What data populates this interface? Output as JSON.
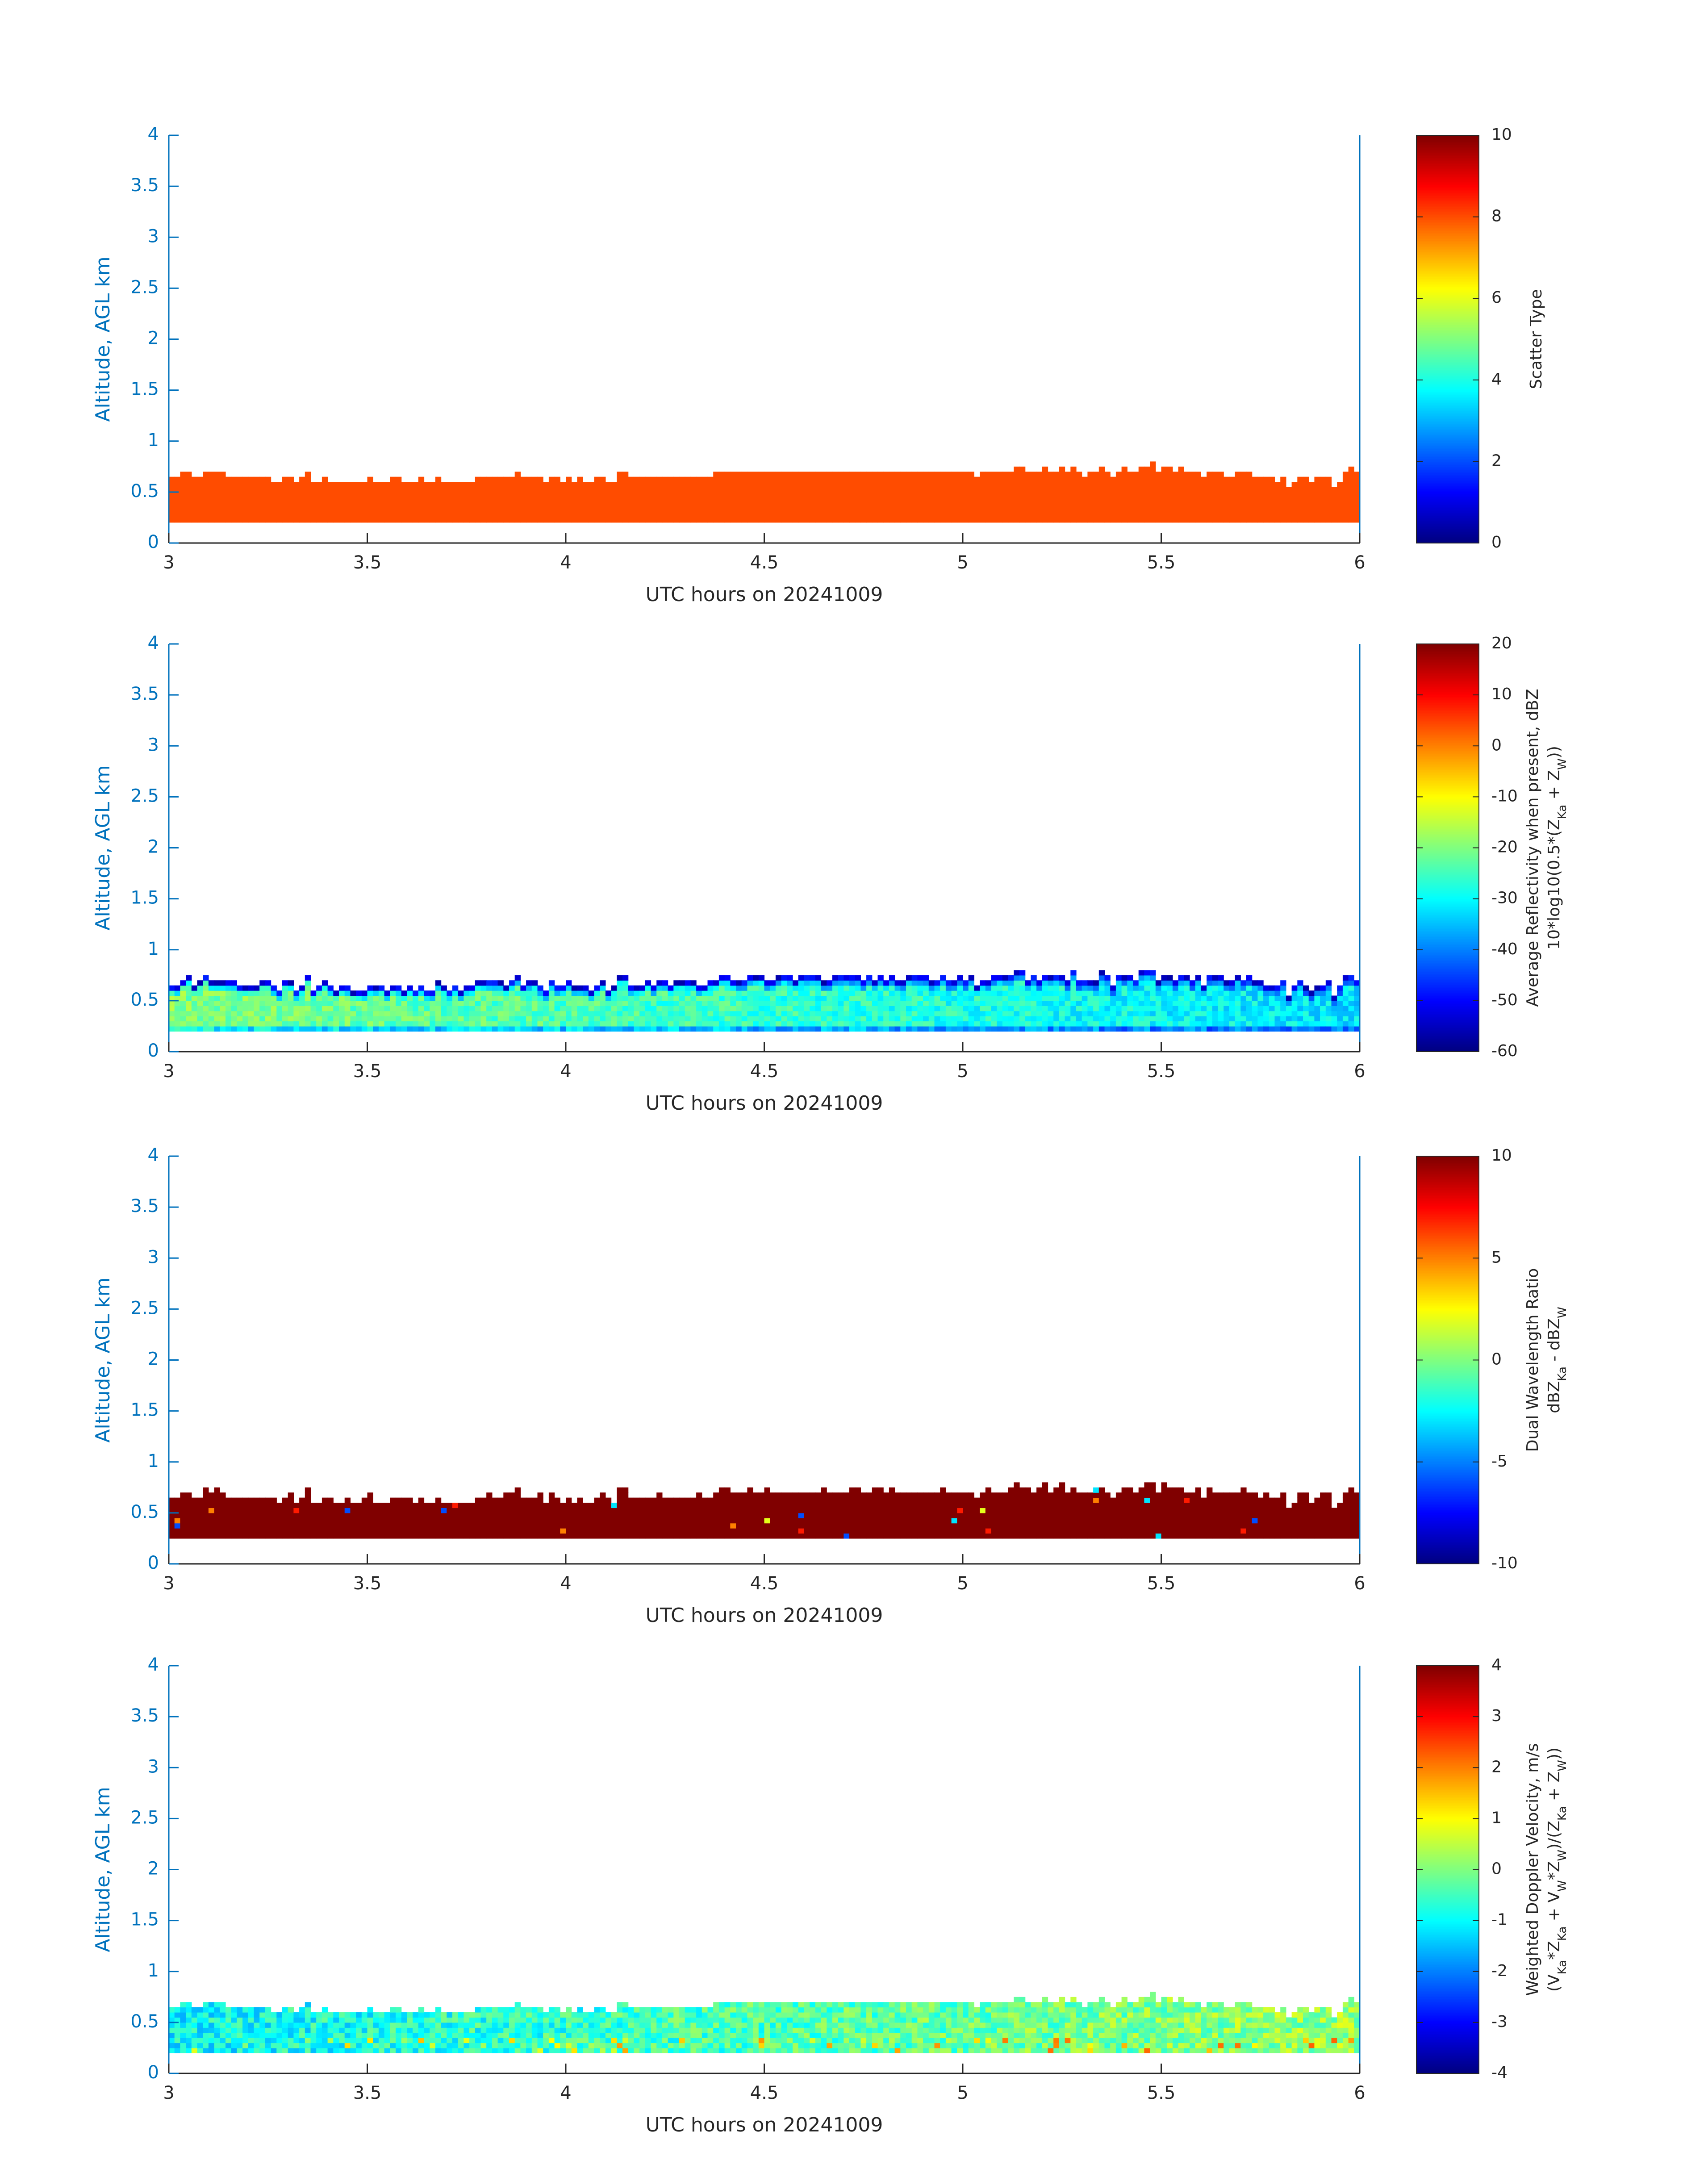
{
  "figure": {
    "colors": {
      "axis_blue": "#0072BD",
      "axis_dark": "#262626",
      "frame_right": "#0072BD",
      "background": "#FFFFFF"
    },
    "colormap": "jet"
  },
  "chart_data": [
    {
      "type": "heatmap",
      "title": "",
      "xlabel": "UTC hours on 20241009",
      "ylabel": "Altitude, AGL km",
      "xlim": [
        3,
        6
      ],
      "ylim": [
        0,
        4
      ],
      "xticks": [
        "3",
        "3.5",
        "4",
        "4.5",
        "5",
        "5.5",
        "6"
      ],
      "yticks": [
        "0",
        "0.5",
        "1",
        "1.5",
        "2",
        "2.5",
        "3",
        "3.5",
        "4"
      ],
      "colorbar": {
        "label_lines": [
          "Scatter Type"
        ],
        "clim": [
          0,
          10
        ],
        "ticks": [
          "0",
          "2",
          "4",
          "6",
          "8",
          "10"
        ]
      },
      "field": {
        "kind": "scatter_type",
        "constant_value": 8,
        "base_km": 0.2,
        "top_km": [
          0.65,
          0.65,
          0.7,
          0.7,
          0.65,
          0.65,
          0.7,
          0.7,
          0.7,
          0.7,
          0.65,
          0.65,
          0.65,
          0.65,
          0.65,
          0.65,
          0.65,
          0.65,
          0.6,
          0.6,
          0.65,
          0.65,
          0.6,
          0.65,
          0.7,
          0.6,
          0.6,
          0.65,
          0.6,
          0.6,
          0.6,
          0.6,
          0.6,
          0.6,
          0.6,
          0.65,
          0.6,
          0.6,
          0.6,
          0.65,
          0.65,
          0.6,
          0.6,
          0.6,
          0.65,
          0.6,
          0.6,
          0.65,
          0.6,
          0.6,
          0.6,
          0.6,
          0.6,
          0.6,
          0.65,
          0.65,
          0.65,
          0.65,
          0.65,
          0.65,
          0.65,
          0.7,
          0.65,
          0.65,
          0.65,
          0.65,
          0.6,
          0.65,
          0.65,
          0.6,
          0.65,
          0.6,
          0.65,
          0.6,
          0.6,
          0.65,
          0.65,
          0.6,
          0.6,
          0.7,
          0.7,
          0.65,
          0.65,
          0.65,
          0.65,
          0.65,
          0.65,
          0.65,
          0.65,
          0.65,
          0.65,
          0.65,
          0.65,
          0.65,
          0.65,
          0.65,
          0.7,
          0.7,
          0.7,
          0.7,
          0.7,
          0.7,
          0.7,
          0.7,
          0.7,
          0.7,
          0.7,
          0.7,
          0.7,
          0.7,
          0.7,
          0.7,
          0.7,
          0.7,
          0.7,
          0.7,
          0.7,
          0.7,
          0.7,
          0.7,
          0.7,
          0.7,
          0.7,
          0.7,
          0.7,
          0.7,
          0.7,
          0.7,
          0.7,
          0.7,
          0.7,
          0.7,
          0.7,
          0.7,
          0.7,
          0.7,
          0.7,
          0.7,
          0.7,
          0.7,
          0.7,
          0.7,
          0.65,
          0.7,
          0.7,
          0.7,
          0.7,
          0.7,
          0.7,
          0.75,
          0.75,
          0.7,
          0.7,
          0.7,
          0.75,
          0.7,
          0.7,
          0.75,
          0.7,
          0.75,
          0.7,
          0.65,
          0.7,
          0.7,
          0.75,
          0.7,
          0.65,
          0.7,
          0.75,
          0.7,
          0.7,
          0.75,
          0.75,
          0.8,
          0.7,
          0.75,
          0.75,
          0.7,
          0.75,
          0.7,
          0.7,
          0.7,
          0.65,
          0.7,
          0.7,
          0.7,
          0.65,
          0.65,
          0.7,
          0.7,
          0.7,
          0.65,
          0.65,
          0.65,
          0.65,
          0.6,
          0.65,
          0.55,
          0.6,
          0.65,
          0.65,
          0.6,
          0.65,
          0.65,
          0.65,
          0.55,
          0.6,
          0.7,
          0.75,
          0.7
        ]
      }
    },
    {
      "type": "heatmap",
      "title": "",
      "xlabel": "UTC hours on 20241009",
      "ylabel": "Altitude, AGL km",
      "xlim": [
        3,
        6
      ],
      "ylim": [
        0,
        4
      ],
      "xticks": [
        "3",
        "3.5",
        "4",
        "4.5",
        "5",
        "5.5",
        "6"
      ],
      "yticks": [
        "0",
        "0.5",
        "1",
        "1.5",
        "2",
        "2.5",
        "3",
        "3.5",
        "4"
      ],
      "colorbar": {
        "label_lines": [
          "Average Reflectivity when present, dBZ",
          "10*log10(0.5*(Z",
          "Ka",
          " + Z",
          "W",
          "))"
        ],
        "clim": [
          -60,
          20
        ],
        "ticks": [
          "-60",
          "-50",
          "-40",
          "-30",
          "-20",
          "-10",
          "0",
          "10",
          "20"
        ]
      },
      "field": {
        "kind": "reflectivity",
        "base_km": 0.2,
        "top_km_offset": 0.05,
        "core_dbz_start": -20,
        "core_dbz_end": -32,
        "edge_dbz": -52
      }
    },
    {
      "type": "heatmap",
      "title": "",
      "xlabel": "UTC hours on 20241009",
      "ylabel": "Altitude, AGL km",
      "xlim": [
        3,
        6
      ],
      "ylim": [
        0,
        4
      ],
      "xticks": [
        "3",
        "3.5",
        "4",
        "4.5",
        "5",
        "5.5",
        "6"
      ],
      "yticks": [
        "0",
        "0.5",
        "1",
        "1.5",
        "2",
        "2.5",
        "3",
        "3.5",
        "4"
      ],
      "colorbar": {
        "label_lines": [
          "Dual Wavelength Ratio",
          "dBZ",
          "Ka",
          " - dBZ",
          "W"
        ],
        "clim": [
          -10,
          10
        ],
        "ticks": [
          "-10",
          "-5",
          "0",
          "5",
          "10"
        ]
      },
      "field": {
        "kind": "dwr",
        "base_km": 0.25,
        "dominant_value": 10,
        "sparse_values": [
          -3,
          2,
          5,
          7,
          -6
        ]
      }
    },
    {
      "type": "heatmap",
      "title": "",
      "xlabel": "UTC hours on 20241009",
      "ylabel": "Altitude, AGL km",
      "xlim": [
        3,
        6
      ],
      "ylim": [
        0,
        4
      ],
      "xticks": [
        "3",
        "3.5",
        "4",
        "4.5",
        "5",
        "5.5",
        "6"
      ],
      "yticks": [
        "0",
        "0.5",
        "1",
        "1.5",
        "2",
        "2.5",
        "3",
        "3.5",
        "4"
      ],
      "colorbar": {
        "label_lines": [
          "Weighted Doppler Velocity, m/s",
          "(V",
          "Ka",
          "*Z",
          "Ka",
          " + V",
          "W",
          "*Z",
          "W",
          ")/(Z",
          "Ka",
          " + Z",
          "W",
          "))"
        ],
        "clim": [
          -4,
          4
        ],
        "ticks": [
          "-4",
          "-3",
          "-2",
          "-1",
          "0",
          "1",
          "2",
          "3",
          "4"
        ]
      },
      "field": {
        "kind": "doppler",
        "base_km": 0.2,
        "mean_value_start": -1.0,
        "mean_value_end": 0.2,
        "spread": 0.7
      }
    }
  ]
}
